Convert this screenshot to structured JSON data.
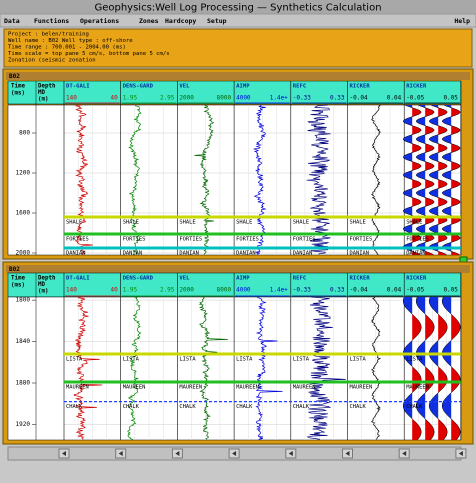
{
  "window_title": "Geophysics:Well Log Processing — Synthetics Calculation",
  "menu": [
    "Data",
    "Functions",
    "Operations",
    "Zones",
    "Hardcopy",
    "Setup"
  ],
  "help": "Help",
  "info": [
    "Project : belen/training",
    "Well name : B02        Well type : off-shore",
    "Time range : 700.001 - 2004.00 (ms)",
    "Time scale = top pane 5 cm/s, bottom pane 5 cm/s",
    "Zonation (seismic zonation"
  ],
  "time_header": [
    "Time",
    "(ms)"
  ],
  "depth_header": [
    "Depth",
    "MD",
    "(m)"
  ],
  "tracks": [
    {
      "name": "DT-GALI",
      "range": [
        "140",
        "40"
      ],
      "color": "#d00000"
    },
    {
      "name": "DENS-GARD",
      "range": [
        "1.95",
        "2.95"
      ],
      "color": "#008800"
    },
    {
      "name": "VEL",
      "range": [
        "2000",
        "8000"
      ],
      "color": "#006600"
    },
    {
      "name": "AIMP",
      "range": [
        "4000",
        "1.4e+"
      ],
      "color": "#0000e0"
    },
    {
      "name": "REFC",
      "range": [
        "-0.33",
        "0.33"
      ],
      "color": "#000080"
    },
    {
      "name": "RICKER",
      "range": [
        "-0.04",
        "0.04"
      ],
      "color": "#000000"
    },
    {
      "name": "RICKER",
      "range": [
        "-0.05",
        "0.05"
      ],
      "color": "#000000"
    }
  ],
  "panels": [
    {
      "label": "B02",
      "ylim": [
        520,
        2020
      ],
      "yticks": [
        800,
        1200,
        1600,
        2000
      ],
      "zones": [
        {
          "name": "SHALE",
          "time": 1640,
          "color": "#c8d800"
        },
        {
          "name": "FORTIES",
          "time": 1810,
          "color": "#20c020"
        },
        {
          "name": "DANIAN",
          "time": 1950,
          "color": "#00c0c0"
        }
      ]
    },
    {
      "label": "B02",
      "ylim": [
        1797,
        1935
      ],
      "yticks": [
        1800,
        1840,
        1880,
        1920
      ],
      "zones": [
        {
          "name": "LISTA",
          "time": 1852,
          "color": "#c8d800"
        },
        {
          "name": "MAUREEN",
          "time": 1879,
          "color": "#20c020"
        },
        {
          "name": "CHALK",
          "time": 1898,
          "color": "#2040ff",
          "dashed": true
        }
      ]
    }
  ]
}
